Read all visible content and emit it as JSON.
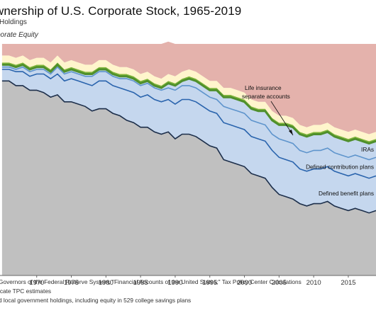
{
  "chart_data": {
    "type": "area",
    "title": "wnership of U.S. Corporate Stock, 1965-2019",
    "subtitle": "Holdings",
    "ylabel": "porate Equity",
    "xlabel": "",
    "x": [
      1965,
      1966,
      1967,
      1968,
      1969,
      1970,
      1971,
      1972,
      1973,
      1974,
      1975,
      1976,
      1977,
      1978,
      1979,
      1980,
      1981,
      1982,
      1983,
      1984,
      1985,
      1986,
      1987,
      1988,
      1989,
      1990,
      1991,
      1992,
      1993,
      1994,
      1995,
      1996,
      1997,
      1998,
      1999,
      2000,
      2001,
      2002,
      2003,
      2004,
      2005,
      2006,
      2007,
      2008,
      2009,
      2010,
      2011,
      2012,
      2013,
      2014,
      2015,
      2016,
      2017,
      2018,
      2019
    ],
    "x_ticks": [
      1970,
      1975,
      1980,
      1985,
      1990,
      1995,
      2000,
      2005,
      2010,
      2015
    ],
    "ylim": [
      0,
      100
    ],
    "series": [
      {
        "name": "",
        "color": "#c0c0c0",
        "values": [
          84,
          84,
          82,
          82,
          80,
          80,
          79,
          77,
          78,
          75,
          75,
          74,
          73,
          71,
          72,
          72,
          70,
          69,
          67,
          66,
          64,
          64,
          62,
          61,
          62,
          59,
          61,
          61,
          60,
          58,
          56,
          55,
          50,
          49,
          48,
          47,
          44,
          43,
          42,
          38,
          35,
          34,
          33,
          31,
          30,
          31,
          31,
          32,
          30,
          29,
          28,
          29,
          28,
          27,
          28
        ]
      },
      {
        "name": "Defined benefit plans",
        "color": "#c5d7ee",
        "values": [
          5,
          5,
          6,
          6,
          6,
          7,
          8,
          8,
          9,
          9,
          10,
          10,
          10,
          11,
          12,
          12,
          12,
          12,
          13,
          13,
          13,
          14,
          14,
          14,
          14,
          15,
          15,
          15,
          15,
          15,
          15,
          15,
          16,
          16,
          16,
          16,
          16,
          16,
          16,
          16,
          16,
          16,
          16,
          15,
          15,
          15,
          15,
          15,
          15,
          15,
          15,
          15,
          15,
          15,
          15
        ]
      },
      {
        "name": "Defined contribution plans",
        "color": "#c5d7ee",
        "values": [
          1,
          1,
          1,
          2,
          2,
          2,
          2,
          2,
          3,
          3,
          3,
          3,
          3,
          4,
          4,
          4,
          4,
          4,
          5,
          5,
          5,
          5,
          5,
          5,
          5,
          6,
          6,
          6,
          6,
          6,
          6,
          6,
          7,
          7,
          7,
          7,
          7,
          7,
          7,
          7,
          8,
          8,
          8,
          8,
          8,
          8,
          8,
          8,
          8,
          8,
          8,
          8,
          8,
          8,
          8
        ]
      },
      {
        "name": "IRAs",
        "color": "#c5d7ee",
        "values": [
          1,
          1,
          1,
          1,
          1,
          1,
          1,
          1,
          1,
          1,
          1,
          1,
          1,
          1,
          1,
          1,
          1,
          1,
          1,
          1,
          1,
          1,
          1,
          1,
          2,
          2,
          2,
          3,
          3,
          3,
          3,
          4,
          4,
          5,
          5,
          5,
          5,
          5,
          6,
          6,
          6,
          7,
          7,
          7,
          7,
          7,
          7,
          7,
          7,
          7,
          7,
          7,
          7,
          7,
          7
        ]
      },
      {
        "name": "Life insurance separate accounts",
        "color": "#84b83c",
        "values": [
          1,
          1,
          1,
          1,
          1,
          1,
          1,
          1,
          1,
          1,
          1,
          1,
          1,
          1,
          1,
          1,
          1,
          1,
          1,
          1,
          1,
          1,
          1,
          1,
          1,
          1,
          1,
          1,
          1,
          1,
          1,
          1,
          1,
          1,
          1,
          1,
          1,
          1,
          1,
          1,
          1,
          1,
          1,
          1,
          1,
          1,
          1,
          1,
          1,
          1,
          1,
          1,
          1,
          1,
          1
        ]
      },
      {
        "name": "",
        "color": "#fff5cc",
        "values": [
          3,
          3,
          3,
          3,
          3,
          3,
          3,
          3,
          3,
          3,
          3,
          3,
          3,
          3,
          3,
          3,
          3,
          3,
          3,
          3,
          3,
          3,
          3,
          3,
          3,
          3,
          3,
          3,
          3,
          3,
          3,
          3,
          3,
          3,
          3,
          3,
          3,
          3,
          3,
          3,
          3,
          3,
          3,
          3,
          3,
          3,
          3,
          3,
          3,
          3,
          3,
          3,
          3,
          3,
          3
        ]
      },
      {
        "name": "",
        "color": "#e4b2ac",
        "values": [
          5,
          5,
          6,
          5,
          7,
          6,
          6,
          8,
          5,
          8,
          7,
          8,
          9,
          9,
          7,
          7,
          9,
          10,
          10,
          11,
          13,
          12,
          14,
          15,
          14,
          14,
          12,
          11,
          12,
          14,
          16,
          16,
          19,
          19,
          20,
          21,
          24,
          25,
          25,
          29,
          31,
          31,
          32,
          35,
          36,
          35,
          35,
          34,
          36,
          37,
          38,
          37,
          38,
          39,
          38
        ]
      }
    ],
    "legend": "inline-right",
    "annotations": [
      "Life insurance",
      "separate accounts"
    ]
  },
  "notes": [
    "Governors of the Federal Reserve System, \"Financial Accounts of the United States;\" Tax Policy Center Calculations",
    "icate TPC estimates",
    "d local government holdings, including equity in 529 college savings plans"
  ]
}
